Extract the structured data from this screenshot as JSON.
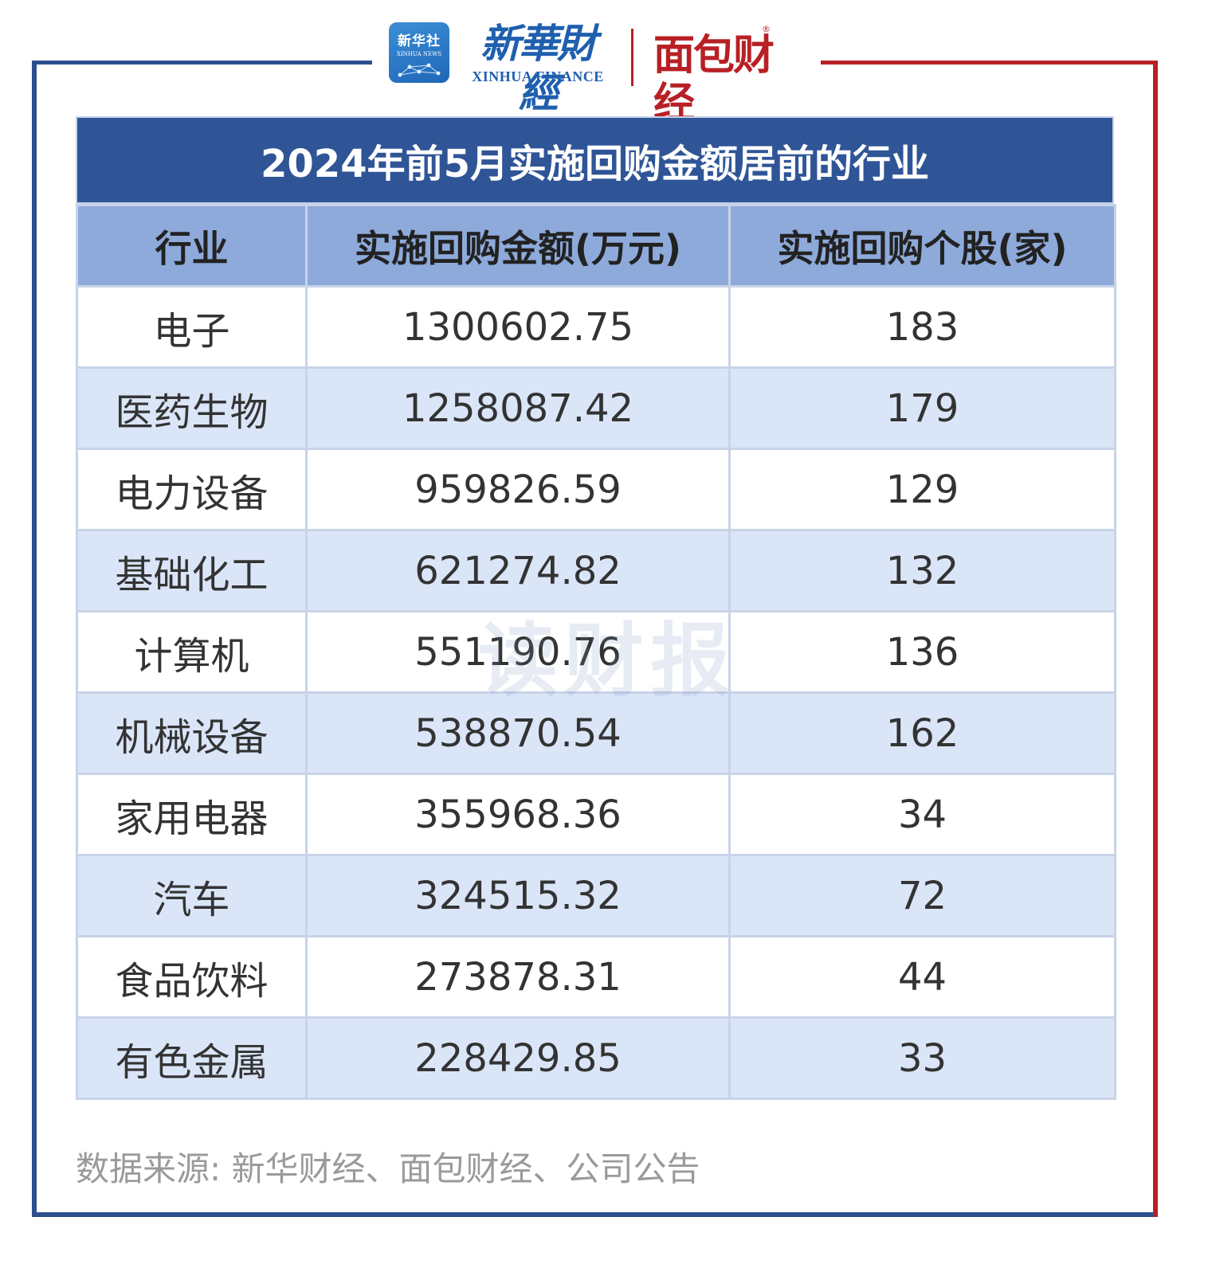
{
  "header": {
    "xinhua_badge_cn": "新华社",
    "xinhua_badge_en": "XINHUA NEWS",
    "xinhua_finance_cn": "新華財經",
    "xinhua_finance_en": "XINHUA FINANCE",
    "mianbao_logo": "面包财经",
    "registered_mark": "®"
  },
  "table": {
    "title": "2024年前5月实施回购金额居前的行业",
    "columns": [
      "行业",
      "实施回购金额(万元)",
      "实施回购个股(家)"
    ],
    "rows": [
      {
        "industry": "电子",
        "amount": "1300602.75",
        "count": "183"
      },
      {
        "industry": "医药生物",
        "amount": "1258087.42",
        "count": "179"
      },
      {
        "industry": "电力设备",
        "amount": "959826.59",
        "count": "129"
      },
      {
        "industry": "基础化工",
        "amount": "621274.82",
        "count": "132"
      },
      {
        "industry": "计算机",
        "amount": "551190.76",
        "count": "136"
      },
      {
        "industry": "机械设备",
        "amount": "538870.54",
        "count": "162"
      },
      {
        "industry": "家用电器",
        "amount": "355968.36",
        "count": "34"
      },
      {
        "industry": "汽车",
        "amount": "324515.32",
        "count": "72"
      },
      {
        "industry": "食品饮料",
        "amount": "273878.31",
        "count": "44"
      },
      {
        "industry": "有色金属",
        "amount": "228429.85",
        "count": "33"
      }
    ]
  },
  "watermark": "读财报",
  "footer": {
    "source": "数据来源: 新华财经、面包财经、公司公告"
  },
  "colors": {
    "frame_blue": "#2c4f8f",
    "frame_red": "#b82025",
    "title_bg": "#2f5597",
    "header_bg": "#8eaadb",
    "row_alt_bg": "#dae5f8"
  }
}
